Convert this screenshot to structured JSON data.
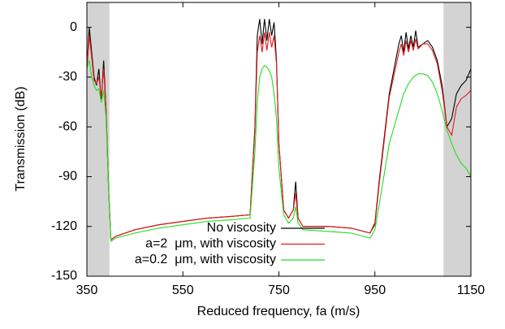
{
  "chart_data": {
    "type": "line",
    "xlabel": "Reduced frequency, fa (m/s)",
    "ylabel": "Transmission (dB)",
    "xlim": [
      350,
      1150
    ],
    "ylim": [
      -150,
      15
    ],
    "xticks": [
      350,
      550,
      750,
      950,
      1150
    ],
    "yticks": [
      0,
      -30,
      -60,
      -90,
      -120,
      -150
    ],
    "shaded_ranges": [
      [
        350,
        397
      ],
      [
        1093,
        1150
      ]
    ],
    "shade_color": "#d3d3d3",
    "legend": "bottom-center",
    "x": [
      350,
      355,
      360,
      365,
      370,
      375,
      380,
      385,
      390,
      395,
      400,
      410,
      450,
      500,
      550,
      600,
      650,
      690,
      700,
      705,
      710,
      715,
      720,
      725,
      730,
      735,
      740,
      745,
      750,
      760,
      770,
      780,
      785,
      790,
      800,
      850,
      900,
      940,
      950,
      960,
      980,
      1000,
      1005,
      1010,
      1015,
      1020,
      1025,
      1030,
      1035,
      1040,
      1050,
      1060,
      1070,
      1080,
      1090,
      1100,
      1110,
      1120,
      1130,
      1140,
      1150
    ],
    "series": [
      {
        "name": "No viscosity",
        "color": "#000000",
        "values": [
          -25,
          0,
          -15,
          -30,
          -35,
          -25,
          -45,
          -20,
          -50,
          -95,
          -128,
          -126,
          -122,
          -119,
          -117,
          -115,
          -114,
          -113,
          -60,
          -5,
          5,
          -10,
          5,
          -8,
          5,
          -5,
          3,
          -20,
          -70,
          -110,
          -115,
          -110,
          -93,
          -115,
          -120,
          -120,
          -121,
          -124,
          -118,
          -90,
          -40,
          -10,
          -5,
          -15,
          -3,
          -13,
          -5,
          -12,
          -2,
          -12,
          -10,
          -8,
          -12,
          -20,
          -35,
          -60,
          -55,
          -40,
          -35,
          -32,
          -25
        ]
      },
      {
        "name": "a=2  μm, with viscosity",
        "color": "#e8161b",
        "values": [
          -25,
          -5,
          -18,
          -32,
          -34,
          -30,
          -42,
          -25,
          -50,
          -95,
          -128,
          -126,
          -122,
          -119,
          -117,
          -115,
          -114,
          -113,
          -62,
          -15,
          -5,
          -15,
          -3,
          -14,
          -3,
          -12,
          -5,
          -22,
          -70,
          -110,
          -115,
          -110,
          -100,
          -115,
          -120,
          -120,
          -121,
          -124,
          -119,
          -92,
          -42,
          -15,
          -10,
          -17,
          -8,
          -15,
          -8,
          -14,
          -7,
          -13,
          -10,
          -10,
          -14,
          -22,
          -38,
          -60,
          -65,
          -48,
          -43,
          -41,
          -38
        ]
      },
      {
        "name": "a=0.2  μm, with viscosity",
        "color": "#22dd22",
        "values": [
          -25,
          -20,
          -30,
          -35,
          -38,
          -37,
          -45,
          -38,
          -55,
          -95,
          -129,
          -127,
          -124,
          -121,
          -119,
          -117,
          -116,
          -115,
          -75,
          -45,
          -30,
          -25,
          -23,
          -24,
          -26,
          -30,
          -40,
          -55,
          -85,
          -113,
          -118,
          -115,
          -108,
          -118,
          -122,
          -123,
          -124,
          -127,
          -122,
          -105,
          -70,
          -50,
          -45,
          -40,
          -37,
          -34,
          -32,
          -30,
          -29,
          -28,
          -28,
          -29,
          -33,
          -40,
          -50,
          -62,
          -70,
          -77,
          -82,
          -85,
          -90
        ]
      }
    ]
  }
}
